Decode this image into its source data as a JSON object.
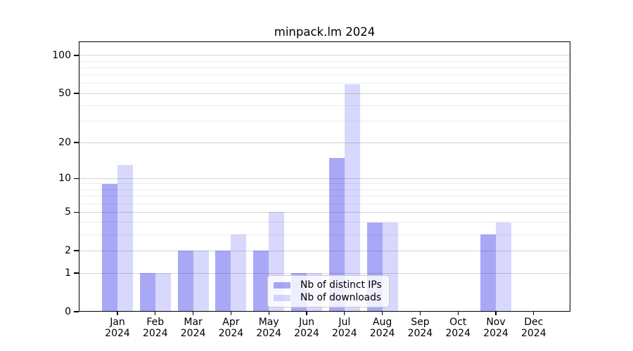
{
  "title": "minpack.lm 2024",
  "legend": {
    "items": [
      {
        "label": "Nb of distinct IPs",
        "color": "rgba(26,26,235,0.38)"
      },
      {
        "label": "Nb of downloads",
        "color": "rgba(26,26,235,0.17)"
      }
    ],
    "position": "lower center"
  },
  "colors": {
    "bar_distinct_ips": "rgba(26,26,235,0.38)",
    "bar_downloads": "rgba(26,26,235,0.17)",
    "gridline_major": "#d4d4d4",
    "gridline_minor": "#ececec",
    "axis": "#000000",
    "background": "#ffffff",
    "text": "#000000"
  },
  "chart_data": {
    "type": "bar",
    "title": "minpack.lm 2024",
    "categories": [
      "Jan",
      "Feb",
      "Mar",
      "Apr",
      "May",
      "Jun",
      "Jul",
      "Aug",
      "Sep",
      "Oct",
      "Nov",
      "Dec"
    ],
    "x_tick_second_line": "2024",
    "series": [
      {
        "name": "Nb of distinct IPs",
        "values": [
          9,
          1,
          2,
          2,
          2,
          1,
          15,
          4,
          0,
          0,
          3,
          0
        ]
      },
      {
        "name": "Nb of downloads",
        "values": [
          13,
          1,
          2,
          3,
          5,
          1,
          59,
          4,
          0,
          0,
          4,
          0
        ]
      }
    ],
    "xlabel": "",
    "ylabel": "",
    "y_axis": {
      "scale": "log1p",
      "tick_values": [
        0,
        1,
        2,
        5,
        10,
        20,
        50,
        100
      ],
      "minor_grid_values": [
        3,
        4,
        6,
        7,
        8,
        9,
        30,
        40,
        60,
        70,
        80,
        90
      ],
      "ylim": [
        0,
        129
      ]
    },
    "grid": true,
    "legend_position": "lower center"
  }
}
